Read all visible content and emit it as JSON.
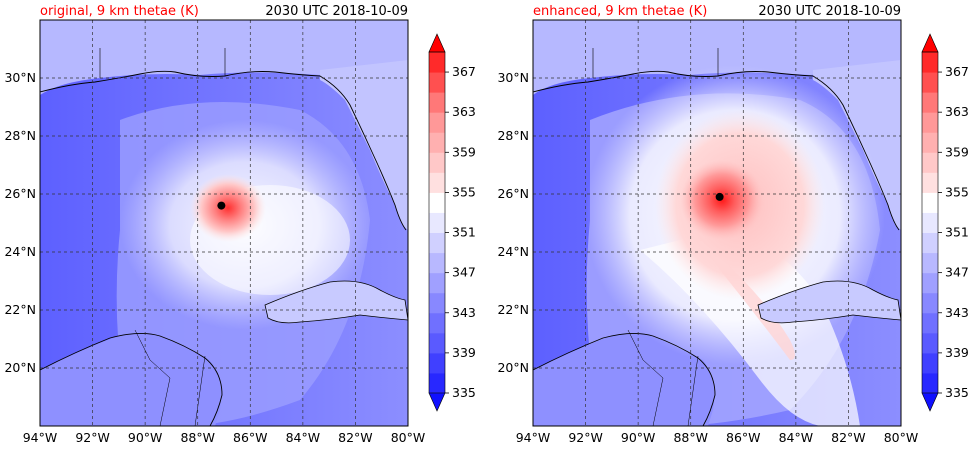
{
  "colors": {
    "ocean_base": "#6f72ff",
    "land_light": "#c9cbff",
    "coast": "#000000",
    "grid": "#333333",
    "storm_center": "#000000",
    "title_left": "#ff0000"
  },
  "panels": [
    {
      "id": "original",
      "title_left": "original, 9 km thetae (K)",
      "title_right": "2030 UTC 2018-10-09",
      "storm_center": {
        "lon": -87.1,
        "lat": 25.6
      },
      "cmap_positions": "original"
    },
    {
      "id": "enhanced",
      "title_left": "enhanced, 9 km thetae (K)",
      "title_right": "2030 UTC 2018-10-09",
      "storm_center": {
        "lon": -86.9,
        "lat": 25.9
      },
      "cmap_positions": "enhanced"
    }
  ],
  "axes": {
    "lon_range": [
      -94,
      -80
    ],
    "lat_range": [
      18,
      32
    ],
    "lon_ticks": [
      "94°W",
      "92°W",
      "90°W",
      "88°W",
      "86°W",
      "84°W",
      "82°W",
      "80°W"
    ],
    "lon_values": [
      -94,
      -92,
      -90,
      -88,
      -86,
      -84,
      -82,
      -80
    ],
    "lat_ticks": [
      "20°N",
      "22°N",
      "24°N",
      "26°N",
      "28°N",
      "30°N"
    ],
    "lat_values": [
      20,
      22,
      24,
      26,
      28,
      30
    ]
  },
  "colorbar": {
    "type": "filled-contour",
    "variable": "thetae (K)",
    "levels": [
      335,
      337,
      339,
      341,
      343,
      345,
      347,
      349,
      351,
      353,
      355,
      357,
      359,
      361,
      363,
      365,
      367,
      369
    ],
    "tick_labels": [
      "335",
      "339",
      "343",
      "347",
      "351",
      "355",
      "359",
      "363",
      "367"
    ],
    "tick_values": [
      335,
      339,
      343,
      347,
      351,
      355,
      359,
      363,
      367
    ],
    "extend": "both",
    "colors": [
      "#1010ff",
      "#2828ff",
      "#4040ff",
      "#5a5aff",
      "#7070ff",
      "#8888ff",
      "#a0a0ff",
      "#b8b8ff",
      "#d0d0ff",
      "#e8e8ff",
      "#ffffff",
      "#ffe0e0",
      "#ffc8c8",
      "#ffb0b0",
      "#ff9898",
      "#ff7878",
      "#ff5050",
      "#ff2a2a",
      "#ff0000"
    ]
  }
}
